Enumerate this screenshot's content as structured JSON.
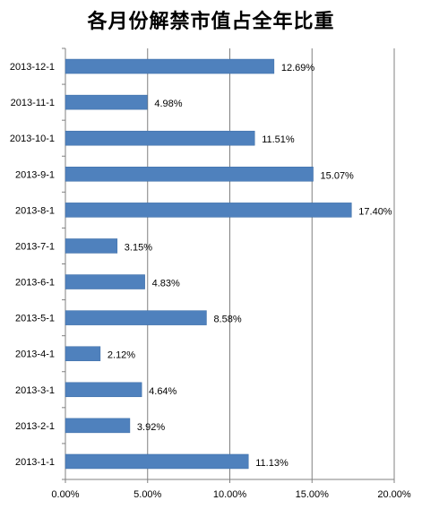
{
  "chart_data": {
    "type": "bar",
    "orientation": "horizontal",
    "title": "各月份解禁市值占全年比重",
    "categories": [
      "2013-1-1",
      "2013-2-1",
      "2013-3-1",
      "2013-4-1",
      "2013-5-1",
      "2013-6-1",
      "2013-7-1",
      "2013-8-1",
      "2013-9-1",
      "2013-10-1",
      "2013-11-1",
      "2013-12-1"
    ],
    "values": [
      11.13,
      3.92,
      4.64,
      2.12,
      8.58,
      4.83,
      3.15,
      17.4,
      15.07,
      11.51,
      4.98,
      12.69
    ],
    "data_labels": [
      "11.13%",
      "3.92%",
      "4.64%",
      "2.12%",
      "8.58%",
      "4.83%",
      "3.15%",
      "17.40%",
      "15.07%",
      "11.51%",
      "4.98%",
      "12.69%"
    ],
    "xlim": [
      0,
      20
    ],
    "x_ticks": [
      0,
      5,
      10,
      15,
      20
    ],
    "x_tick_labels": [
      "0.00%",
      "5.00%",
      "10.00%",
      "15.00%",
      "20.00%"
    ],
    "xlabel": "",
    "ylabel": "",
    "grid": "vertical",
    "legend": "none",
    "colors": {
      "bar": "#4F81BD",
      "bar_edge": "#3A6BA5",
      "grid": "#808080",
      "axis": "#808080"
    }
  }
}
